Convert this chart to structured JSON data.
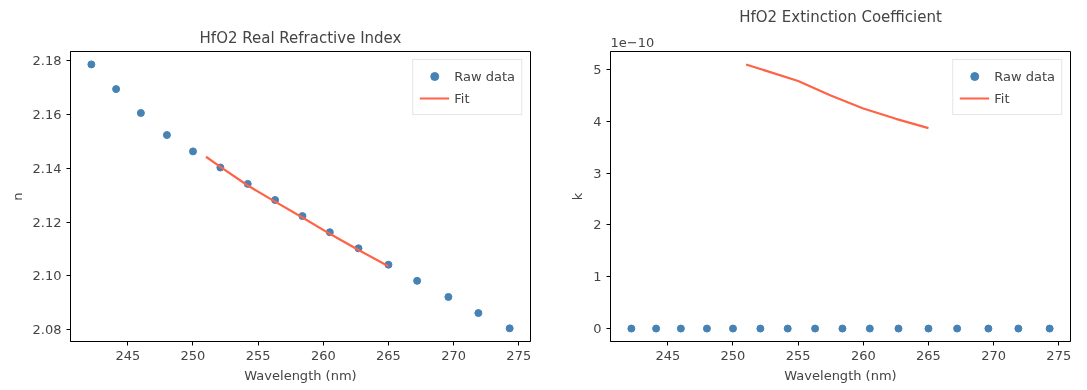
{
  "chart_data": [
    {
      "type": "scatter",
      "title": "HfO2 Real Refractive Index",
      "xlabel": "Wavelength (nm)",
      "ylabel": "n",
      "x": [
        242.2,
        244.1,
        246.0,
        248.0,
        250.0,
        252.1,
        254.2,
        256.3,
        258.4,
        260.5,
        262.7,
        265.0,
        267.2,
        269.6,
        271.9,
        274.3
      ],
      "series": [
        {
          "name": "Raw data",
          "color": "#4682b4",
          "marker": "circle",
          "values": [
            2.1787,
            2.1695,
            2.1606,
            2.1524,
            2.1463,
            2.1403,
            2.1342,
            2.1282,
            2.1222,
            2.1162,
            2.1102,
            2.1041,
            2.0981,
            2.0921,
            2.0861,
            2.0804
          ]
        },
        {
          "name": "Fit",
          "type": "line",
          "color": "#ff6347",
          "line_style": "solid",
          "x": [
            251.0,
            252.1,
            254.2,
            256.3,
            258.4,
            260.5,
            262.7,
            265.0
          ],
          "values": [
            2.1443,
            2.1405,
            2.1336,
            2.1276,
            2.1217,
            2.1156,
            2.1096,
            2.1035
          ]
        }
      ],
      "xlim": [
        240.6,
        275.9
      ],
      "xticks": [
        245,
        250,
        255,
        260,
        265,
        270,
        275
      ],
      "ylim": [
        2.0755,
        2.1835
      ],
      "yticks": [
        {
          "value": 2.08,
          "label": "2.08"
        },
        {
          "value": 2.1,
          "label": "2.10"
        },
        {
          "value": 2.12,
          "label": "2.12"
        },
        {
          "value": 2.14,
          "label": "2.14"
        },
        {
          "value": 2.16,
          "label": "2.16"
        },
        {
          "value": 2.18,
          "label": "2.18"
        }
      ],
      "legend": "top right",
      "grid": false
    },
    {
      "type": "scatter",
      "title": "HfO2 Extinction Coefficient",
      "xlabel": "Wavelength (nm)",
      "ylabel": "k",
      "annotations": [
        "1e−10"
      ],
      "x": [
        242.2,
        244.1,
        246.0,
        248.0,
        250.0,
        252.1,
        254.2,
        256.3,
        258.4,
        260.5,
        262.7,
        265.0,
        267.2,
        269.6,
        271.9,
        274.3
      ],
      "series": [
        {
          "name": "Raw data",
          "color": "#4682b4",
          "marker": "circle",
          "values": [
            0,
            0,
            0,
            0,
            0,
            0,
            0,
            0,
            0,
            0,
            0,
            0,
            0,
            0,
            0,
            0
          ]
        },
        {
          "name": "Fit",
          "type": "line",
          "color": "#ff6347",
          "line_style": "solid",
          "x": [
            251.0,
            255.0,
            257.5,
            260.0,
            262.5,
            265.0
          ],
          "values": [
            5.1,
            4.78,
            4.5,
            4.25,
            4.05,
            3.87
          ]
        }
      ],
      "xlim": [
        240.6,
        275.9
      ],
      "xticks": [
        245,
        250,
        255,
        260,
        265,
        270,
        275
      ],
      "ylim": [
        -0.25,
        5.35
      ],
      "yticks": [
        0,
        1,
        2,
        3,
        4,
        5
      ],
      "legend": "top right",
      "grid": false
    }
  ]
}
